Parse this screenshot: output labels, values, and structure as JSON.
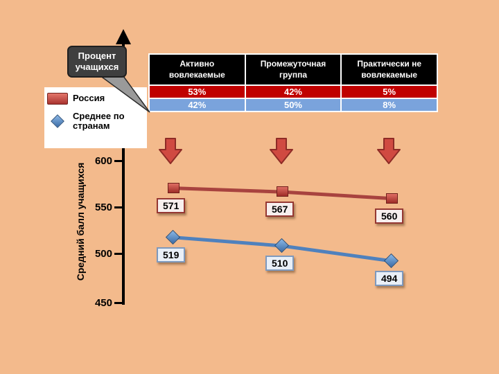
{
  "slide": {
    "background": "#f3ba8c"
  },
  "callout": {
    "text": "Процент учащихся"
  },
  "legend": {
    "items": [
      {
        "label": "Россия",
        "marker": "red-3d-square-icon",
        "color": "#c0392b"
      },
      {
        "label": "Среднее по странам",
        "marker": "blue-diamond-icon",
        "color": "#4f81bd"
      }
    ]
  },
  "axis": {
    "title": "Средний балл учащихся",
    "ticks": [
      "600",
      "550",
      "500",
      "450"
    ]
  },
  "table": {
    "headers": [
      "Активно вовлекаемые",
      "Промежуточная группа",
      "Практически не вовлекаемые"
    ],
    "rows": [
      {
        "name": "Россия",
        "color": "#c00000",
        "values": [
          "53%",
          "42%",
          "5%"
        ]
      },
      {
        "name": "Среднее по странам",
        "color": "#7aa3dc",
        "values": [
          "42%",
          "50%",
          "8%"
        ]
      }
    ]
  },
  "arrows": {
    "color": "#d04a41",
    "outline": "#8e2b26"
  },
  "chart_data": {
    "type": "line",
    "categories": [
      "Активно вовлекаемые",
      "Промежуточная группа",
      "Практически не вовлекаемые"
    ],
    "series": [
      {
        "name": "Россия",
        "values": [
          571,
          567,
          560
        ],
        "color": "#a8433f",
        "marker": "square"
      },
      {
        "name": "Среднее по странам",
        "values": [
          519,
          510,
          494
        ],
        "color": "#4f81bd",
        "marker": "diamond"
      }
    ],
    "title": "",
    "xlabel": "",
    "ylabel": "Средний балл учащихся",
    "ylim": [
      450,
      600
    ],
    "yticks": [
      600,
      550,
      500,
      450
    ],
    "legend_position": "left",
    "grid": false
  }
}
